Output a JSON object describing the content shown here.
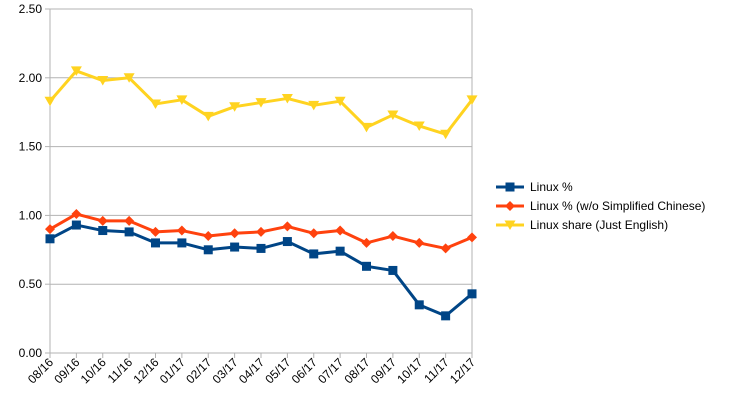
{
  "chart_data": {
    "type": "line",
    "categories": [
      "08/16",
      "09/16",
      "10/16",
      "11/16",
      "12/16",
      "01/17",
      "02/17",
      "03/17",
      "04/17",
      "05/17",
      "06/17",
      "07/17",
      "08/17",
      "09/17",
      "10/17",
      "11/17",
      "12/17"
    ],
    "y_ticks": [
      "0.00",
      "0.50",
      "1.00",
      "1.50",
      "2.00",
      "2.50"
    ],
    "ylim": [
      0,
      2.5
    ],
    "grid": "horizontal",
    "legend_position": "right",
    "series": [
      {
        "name": "Linux %",
        "color": "#004586",
        "marker": "square",
        "values": [
          0.83,
          0.93,
          0.89,
          0.88,
          0.8,
          0.8,
          0.75,
          0.77,
          0.76,
          0.81,
          0.72,
          0.74,
          0.63,
          0.6,
          0.35,
          0.27,
          0.43
        ]
      },
      {
        "name": "Linux % (w/o Simplified Chinese)",
        "color": "#ff420e",
        "marker": "diamond",
        "values": [
          0.9,
          1.01,
          0.96,
          0.96,
          0.88,
          0.89,
          0.85,
          0.87,
          0.88,
          0.92,
          0.87,
          0.89,
          0.8,
          0.85,
          0.8,
          0.76,
          0.84
        ]
      },
      {
        "name": "Linux share (Just English)",
        "color": "#ffd320",
        "marker": "triangle-down",
        "values": [
          1.83,
          2.05,
          1.98,
          2.0,
          1.81,
          1.84,
          1.72,
          1.79,
          1.82,
          1.85,
          1.8,
          1.83,
          1.64,
          1.73,
          1.65,
          1.59,
          1.84
        ]
      }
    ]
  }
}
